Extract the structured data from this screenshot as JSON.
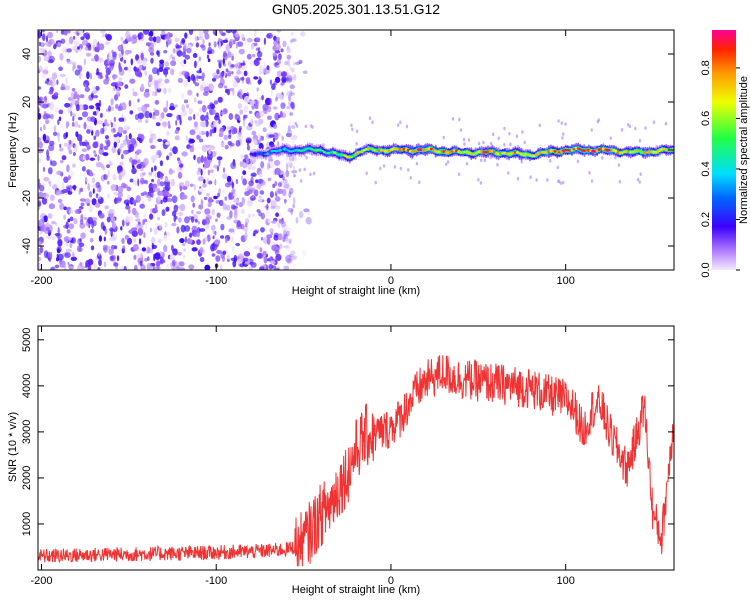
{
  "title": "GN05.2025.301.13.51.G12",
  "chart_data": [
    {
      "type": "heatmap",
      "xlabel": "Height of straight line (km)",
      "ylabel": "Frequency (Hz)",
      "xlim": [
        -202,
        162
      ],
      "ylim": [
        -50,
        50
      ],
      "xticks": [
        -200,
        -100,
        0,
        100
      ],
      "xtick_labels": [
        "-200",
        "-100",
        "0",
        "100"
      ],
      "yticks": [
        -40,
        -20,
        0,
        20,
        40
      ],
      "ytick_labels": [
        "-40",
        "-20",
        "0",
        "20",
        "40"
      ],
      "colorbar": {
        "label": "Normalized spectral amplitude",
        "range": [
          0,
          0.95
        ],
        "ticks": [
          0.0,
          0.2,
          0.4,
          0.6,
          0.8
        ],
        "tick_labels": [
          "0.0",
          "0.2",
          "0.4",
          "0.6",
          "0.8"
        ]
      },
      "noise_region": {
        "x_from": -202,
        "x_to": -55,
        "amplitude_max": 0.2
      },
      "signal_line": {
        "x_from": -80,
        "x_to": 162,
        "points": [
          {
            "x": -80,
            "y": -2,
            "amp": 0.2
          },
          {
            "x": -70,
            "y": -1,
            "amp": 0.35
          },
          {
            "x": -60,
            "y": 0,
            "amp": 0.45
          },
          {
            "x": -50,
            "y": 0,
            "amp": 0.5
          },
          {
            "x": -40,
            "y": 0,
            "amp": 0.55
          },
          {
            "x": -30,
            "y": -2,
            "amp": 0.6
          },
          {
            "x": -25,
            "y": -3,
            "amp": 0.7
          },
          {
            "x": -15,
            "y": 0,
            "amp": 0.7
          },
          {
            "x": 0,
            "y": 0,
            "amp": 0.85
          },
          {
            "x": 20,
            "y": 0,
            "amp": 0.9
          },
          {
            "x": 40,
            "y": -1,
            "amp": 0.8
          },
          {
            "x": 60,
            "y": -1,
            "amp": 0.85
          },
          {
            "x": 80,
            "y": -2,
            "amp": 0.8
          },
          {
            "x": 100,
            "y": 0,
            "amp": 0.9
          },
          {
            "x": 120,
            "y": 0,
            "amp": 0.9
          },
          {
            "x": 140,
            "y": -1,
            "amp": 0.75
          },
          {
            "x": 162,
            "y": 0,
            "amp": 0.8
          }
        ]
      }
    },
    {
      "type": "line",
      "xlabel": "Height of straight line (km)",
      "ylabel": "SNR (10 * v/v)",
      "xlim": [
        -202,
        162
      ],
      "ylim": [
        0,
        5300
      ],
      "xticks": [
        -200,
        -100,
        0,
        100
      ],
      "xtick_labels": [
        "-200",
        "-100",
        "0",
        "100"
      ],
      "yticks": [
        1000,
        2000,
        3000,
        4000,
        5000
      ],
      "ytick_labels": [
        "1000",
        "2000",
        "3000",
        "4000",
        "5000"
      ],
      "color": "#f03232",
      "series": [
        {
          "x": [
            -202,
            -190,
            -180,
            -170,
            -160,
            -150,
            -140,
            -130,
            -120,
            -110,
            -100,
            -90,
            -80,
            -70,
            -60,
            -55,
            -50,
            -45,
            -40,
            -35,
            -30,
            -25,
            -20,
            -15,
            -10,
            -5,
            0,
            5,
            10,
            15,
            20,
            25,
            30,
            35,
            40,
            50,
            60,
            70,
            80,
            90,
            100,
            105,
            110,
            115,
            120,
            125,
            130,
            135,
            140,
            145,
            150,
            155,
            160,
            162
          ],
          "y": [
            300,
            310,
            320,
            330,
            340,
            340,
            350,
            360,
            360,
            370,
            380,
            390,
            400,
            420,
            450,
            500,
            600,
            900,
            1200,
            1400,
            1800,
            2100,
            2600,
            2900,
            2950,
            3000,
            3100,
            3300,
            3600,
            3900,
            4100,
            4200,
            4300,
            4200,
            4150,
            4100,
            4050,
            4000,
            3950,
            3800,
            3700,
            3500,
            3000,
            3500,
            3600,
            3000,
            2600,
            2200,
            2800,
            3600,
            1200,
            700,
            2600,
            3300
          ]
        }
      ]
    }
  ]
}
